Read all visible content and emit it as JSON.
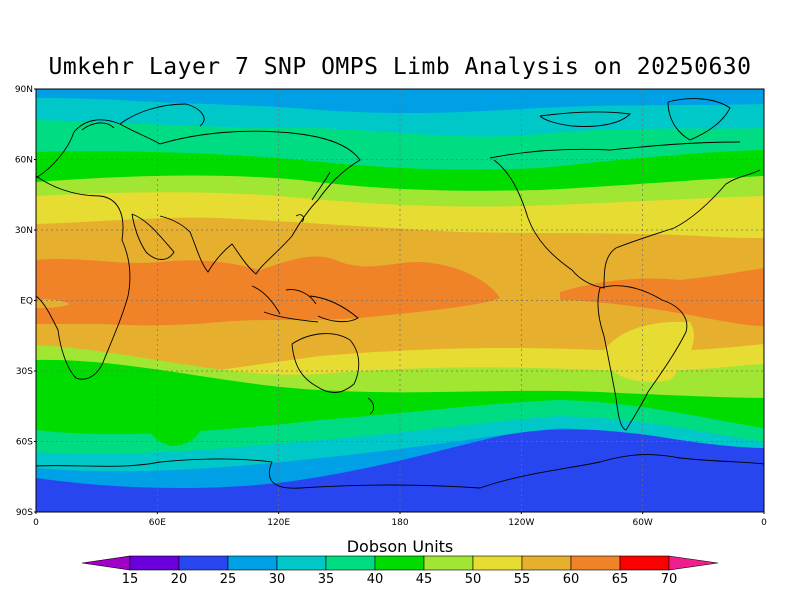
{
  "title": "Umkehr Layer 7 SNP OMPS Limb Analysis on 20250630",
  "lat_labels": [
    "90N",
    "60N",
    "30N",
    "EQ",
    "30S",
    "60S",
    "90S"
  ],
  "lon_labels": [
    "0",
    "60E",
    "120E",
    "180",
    "120W",
    "60W",
    "0"
  ],
  "colorbar": {
    "title": "Dobson Units",
    "ticks": [
      "15",
      "20",
      "25",
      "30",
      "35",
      "40",
      "45",
      "50",
      "55",
      "60",
      "65",
      "70"
    ],
    "colors": [
      "#a000c8",
      "#6a00dc",
      "#2846f0",
      "#00a0e6",
      "#00c8c8",
      "#00dc82",
      "#00dc00",
      "#a0e632",
      "#e6dc32",
      "#e6af2d",
      "#f08228",
      "#fa0000",
      "#f01e8c"
    ]
  },
  "field_colors": {
    "c25": "#2846f0",
    "c30": "#00a0e6",
    "c35": "#00c8c8",
    "c40": "#00dc82",
    "c45": "#00dc00",
    "c50": "#a0e632",
    "c55": "#e6dc32",
    "c60": "#e6af2d",
    "c65": "#f08228"
  }
}
